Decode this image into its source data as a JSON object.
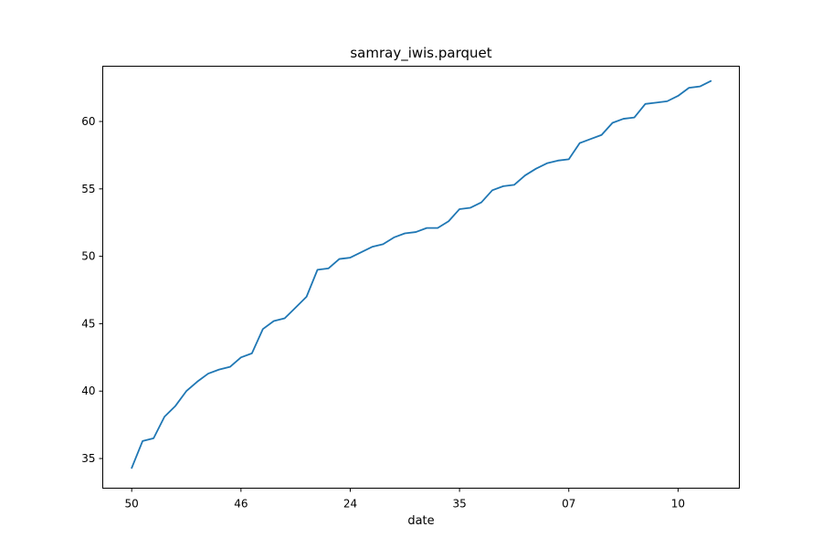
{
  "chart_data": {
    "type": "line",
    "title": "samray_iwis.parquet",
    "xlabel": "date",
    "ylabel": "",
    "x_tick_labels": [
      "50",
      "46",
      "24",
      "35",
      "07",
      "10"
    ],
    "y_ticks": [
      35,
      40,
      45,
      50,
      55,
      60
    ],
    "ylim": [
      32.8,
      64.1
    ],
    "grid": false,
    "series": [
      {
        "color": "#1f77b4",
        "values": [
          34.3,
          36.3,
          36.5,
          38.1,
          38.9,
          40.0,
          40.7,
          41.3,
          41.6,
          41.8,
          42.5,
          42.8,
          44.6,
          45.2,
          45.4,
          46.2,
          47.0,
          49.0,
          49.1,
          49.8,
          49.9,
          50.3,
          50.7,
          50.9,
          51.4,
          51.7,
          51.8,
          52.1,
          52.1,
          52.6,
          53.5,
          53.6,
          54.0,
          54.9,
          55.2,
          55.3,
          56.0,
          56.5,
          56.9,
          57.1,
          57.2,
          58.4,
          58.7,
          59.0,
          59.9,
          60.2,
          60.3,
          61.3,
          61.4,
          61.5,
          61.9,
          62.5,
          62.6,
          63.0
        ]
      }
    ]
  }
}
